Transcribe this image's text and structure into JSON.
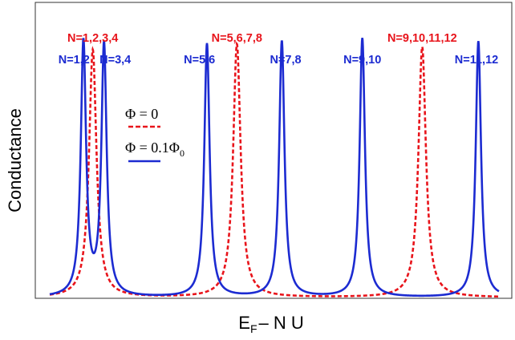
{
  "chart_data": {
    "type": "line",
    "xlabel": "E",
    "xlabel_sub": "F",
    "xlabel_rest": "– N U",
    "ylabel": "Conductance",
    "xlim": [
      0,
      12
    ],
    "ylim": [
      0,
      1
    ],
    "grid": false,
    "legend_position": "upper-left",
    "colors": {
      "flux_zero": "#e8141b",
      "flux_nonzero": "#1c2bd1"
    },
    "series": [
      {
        "name": "Φ = 0",
        "style": "dashed",
        "color": "#e8141b",
        "width": 0.12,
        "peaks": [
          {
            "x": 1.15,
            "y": 0.88
          },
          {
            "x": 5.0,
            "y": 0.9
          },
          {
            "x": 9.95,
            "y": 0.89
          }
        ]
      },
      {
        "name": "Φ = 0.1Φ",
        "name_sub": "0",
        "style": "solid",
        "color": "#1c2bd1",
        "width": 0.085,
        "peaks": [
          {
            "x": 0.9,
            "y": 0.9
          },
          {
            "x": 1.45,
            "y": 0.89
          },
          {
            "x": 4.2,
            "y": 0.9
          },
          {
            "x": 6.2,
            "y": 0.91
          },
          {
            "x": 8.35,
            "y": 0.92
          },
          {
            "x": 11.45,
            "y": 0.91
          }
        ]
      }
    ],
    "annotations": [
      {
        "text": "N=1,2,3,4",
        "x": 1.15,
        "color": "#e8141b",
        "row": "top"
      },
      {
        "text": "N=5,6,7,8",
        "x": 5.0,
        "color": "#e8141b",
        "row": "top"
      },
      {
        "text": "N=9,10,11,12",
        "x": 9.95,
        "color": "#e8141b",
        "row": "top"
      },
      {
        "text": "N=1,2",
        "x": 0.65,
        "color": "#1c2bd1",
        "row": "bottom"
      },
      {
        "text": "N=3,4",
        "x": 1.75,
        "color": "#1c2bd1",
        "row": "bottom"
      },
      {
        "text": "N=5,6",
        "x": 4.0,
        "color": "#1c2bd1",
        "row": "bottom"
      },
      {
        "text": "N=7,8",
        "x": 6.3,
        "color": "#1c2bd1",
        "row": "bottom"
      },
      {
        "text": "N=9,10",
        "x": 8.35,
        "color": "#1c2bd1",
        "row": "bottom"
      },
      {
        "text": "N=11,12",
        "x": 11.4,
        "color": "#1c2bd1",
        "row": "bottom"
      }
    ]
  }
}
